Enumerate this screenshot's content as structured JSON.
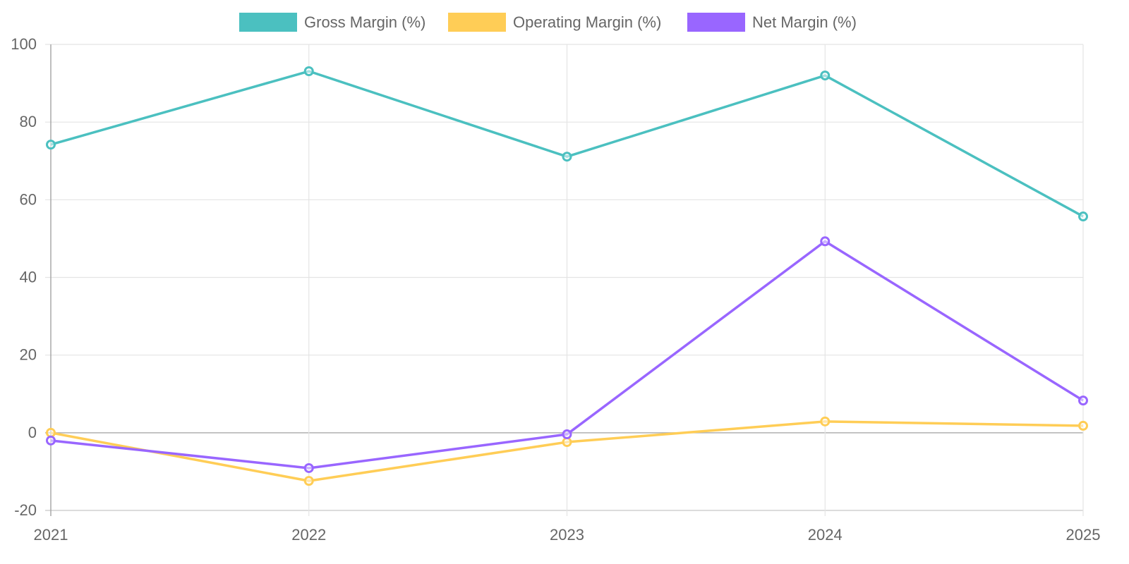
{
  "chart_data": {
    "type": "line",
    "title": "",
    "xlabel": "",
    "ylabel": "",
    "categories": [
      "2021",
      "2022",
      "2023",
      "2024",
      "2025"
    ],
    "ylim": [
      -20,
      100
    ],
    "yticks": [
      "100",
      "80",
      "60",
      "40",
      "20",
      "0",
      "-20"
    ],
    "ytick_values": [
      100,
      80,
      60,
      40,
      20,
      0,
      -20
    ],
    "grid": true,
    "legend_position": "top-center",
    "series": [
      {
        "name": "Gross Margin (%)",
        "color": "#4bc0c0",
        "values": [
          74.2,
          93.1,
          71.1,
          92.0,
          55.7
        ]
      },
      {
        "name": "Operating Margin (%)",
        "color": "#ffcd56",
        "values": [
          0.0,
          -12.4,
          -2.4,
          2.9,
          1.8
        ]
      },
      {
        "name": "Net Margin (%)",
        "color": "#9966ff",
        "values": [
          -2.0,
          -9.1,
          -0.4,
          49.3,
          8.3
        ]
      }
    ]
  }
}
